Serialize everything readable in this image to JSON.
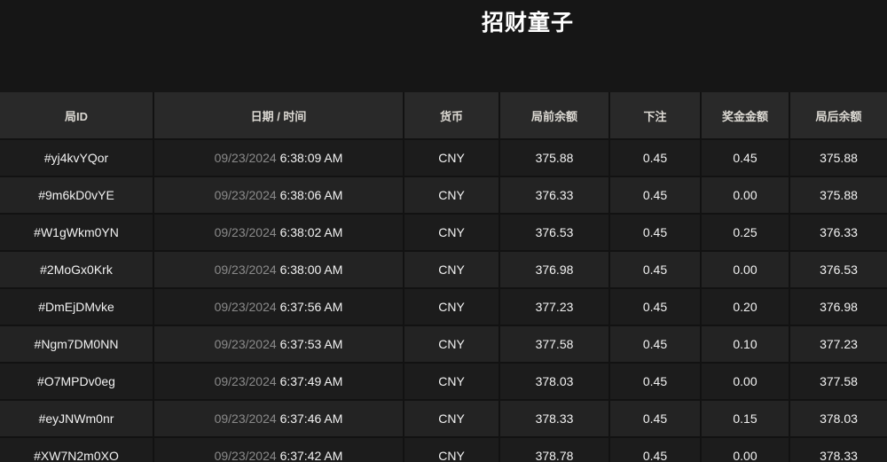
{
  "page": {
    "title": "招财童子"
  },
  "colors": {
    "background": "#161616",
    "header_bg": "#292929",
    "row_odd_bg": "#1c1c1c",
    "row_even_bg": "#232323",
    "separator": "#121212",
    "text_primary": "#f2f2f2",
    "text_header": "#dcd9d3",
    "text_date_muted": "#8a8a8a",
    "title_text": "#ffffff"
  },
  "table": {
    "columns": [
      {
        "key": "id",
        "label": "局ID"
      },
      {
        "key": "datetime",
        "label": "日期 / 时间"
      },
      {
        "key": "currency",
        "label": "货币"
      },
      {
        "key": "balance_before",
        "label": "局前余额"
      },
      {
        "key": "bet",
        "label": "下注"
      },
      {
        "key": "prize",
        "label": "奖金金额"
      },
      {
        "key": "balance_after",
        "label": "局后余额"
      }
    ],
    "rows": [
      {
        "id": "#yj4kvYQor",
        "date": "09/23/2024",
        "time": "6:38:09 AM",
        "currency": "CNY",
        "balance_before": "375.88",
        "bet": "0.45",
        "prize": "0.45",
        "balance_after": "375.88"
      },
      {
        "id": "#9m6kD0vYE",
        "date": "09/23/2024",
        "time": "6:38:06 AM",
        "currency": "CNY",
        "balance_before": "376.33",
        "bet": "0.45",
        "prize": "0.00",
        "balance_after": "375.88"
      },
      {
        "id": "#W1gWkm0YN",
        "date": "09/23/2024",
        "time": "6:38:02 AM",
        "currency": "CNY",
        "balance_before": "376.53",
        "bet": "0.45",
        "prize": "0.25",
        "balance_after": "376.33"
      },
      {
        "id": "#2MoGx0Krk",
        "date": "09/23/2024",
        "time": "6:38:00 AM",
        "currency": "CNY",
        "balance_before": "376.98",
        "bet": "0.45",
        "prize": "0.00",
        "balance_after": "376.53"
      },
      {
        "id": "#DmEjDMvke",
        "date": "09/23/2024",
        "time": "6:37:56 AM",
        "currency": "CNY",
        "balance_before": "377.23",
        "bet": "0.45",
        "prize": "0.20",
        "balance_after": "376.98"
      },
      {
        "id": "#Ngm7DM0NN",
        "date": "09/23/2024",
        "time": "6:37:53 AM",
        "currency": "CNY",
        "balance_before": "377.58",
        "bet": "0.45",
        "prize": "0.10",
        "balance_after": "377.23"
      },
      {
        "id": "#O7MPDv0eg",
        "date": "09/23/2024",
        "time": "6:37:49 AM",
        "currency": "CNY",
        "balance_before": "378.03",
        "bet": "0.45",
        "prize": "0.00",
        "balance_after": "377.58"
      },
      {
        "id": "#eyJNWm0nr",
        "date": "09/23/2024",
        "time": "6:37:46 AM",
        "currency": "CNY",
        "balance_before": "378.33",
        "bet": "0.45",
        "prize": "0.15",
        "balance_after": "378.03"
      },
      {
        "id": "#XW7N2m0XO",
        "date": "09/23/2024",
        "time": "6:37:42 AM",
        "currency": "CNY",
        "balance_before": "378.78",
        "bet": "0.45",
        "prize": "0.00",
        "balance_after": "378.33"
      }
    ]
  }
}
